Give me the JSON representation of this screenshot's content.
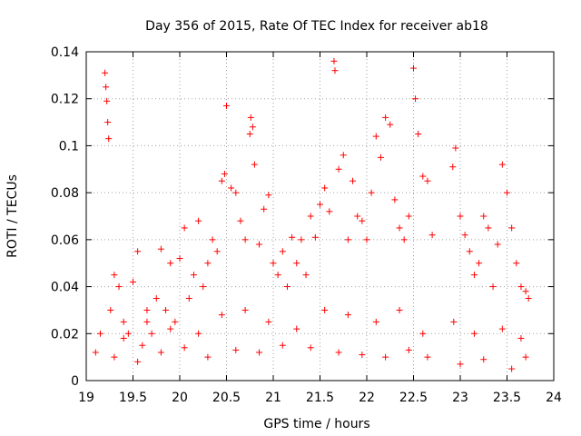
{
  "chart_data": {
    "type": "scatter",
    "title": "Day 356 of 2015, Rate Of TEC Index for receiver ab18",
    "xlabel": "GPS time / hours",
    "ylabel": "ROTI / TECUs",
    "xlim": [
      19,
      24
    ],
    "ylim": [
      0,
      0.14
    ],
    "xticks": [
      "19",
      "19.5",
      "20",
      "20.5",
      "21",
      "21.5",
      "22",
      "22.5",
      "23",
      "23.5",
      "24"
    ],
    "yticks": [
      "0",
      "0.02",
      "0.04",
      "0.06",
      "0.08",
      "0.1",
      "0.12",
      "0.14"
    ],
    "grid": true,
    "marker": "+",
    "color": "#ff0000",
    "series": [
      {
        "name": "ROTI",
        "x": [
          19.2,
          19.21,
          19.22,
          19.23,
          19.24,
          19.26,
          19.3,
          19.35,
          19.4,
          19.45,
          19.5,
          19.55,
          19.6,
          19.65,
          19.7,
          19.75,
          19.8,
          19.85,
          19.9,
          19.95,
          20.0,
          20.05,
          20.1,
          20.15,
          20.2,
          20.25,
          20.3,
          20.35,
          20.4,
          20.45,
          20.48,
          20.5,
          20.55,
          20.6,
          20.65,
          20.7,
          20.75,
          20.76,
          20.78,
          20.8,
          20.85,
          20.9,
          20.95,
          21.0,
          21.05,
          21.1,
          21.15,
          21.2,
          21.25,
          21.3,
          21.35,
          21.4,
          21.45,
          21.5,
          21.55,
          21.6,
          21.65,
          21.66,
          21.7,
          21.75,
          21.8,
          21.85,
          21.9,
          21.95,
          22.0,
          22.05,
          22.1,
          22.15,
          22.2,
          22.25,
          22.3,
          22.35,
          22.4,
          22.45,
          22.5,
          22.52,
          22.55,
          22.6,
          22.65,
          22.7,
          22.92,
          22.95,
          23.0,
          23.05,
          23.1,
          23.15,
          23.2,
          23.25,
          23.3,
          23.35,
          23.4,
          23.45,
          23.5,
          23.55,
          23.6,
          23.65,
          23.7,
          23.73,
          19.1,
          19.3,
          19.55,
          19.8,
          20.05,
          20.3,
          20.6,
          20.85,
          21.1,
          21.4,
          21.7,
          21.95,
          22.2,
          22.45,
          22.65,
          23.0,
          23.25,
          23.55,
          23.7,
          19.15,
          19.4,
          19.65,
          19.9,
          20.2,
          20.45,
          20.7,
          20.95,
          21.25,
          21.55,
          21.8,
          22.1,
          22.35,
          22.6,
          22.93,
          23.15,
          23.45,
          23.65
        ],
        "y": [
          0.131,
          0.125,
          0.119,
          0.11,
          0.103,
          0.03,
          0.045,
          0.04,
          0.025,
          0.02,
          0.042,
          0.055,
          0.015,
          0.03,
          0.02,
          0.035,
          0.056,
          0.03,
          0.05,
          0.025,
          0.052,
          0.065,
          0.035,
          0.045,
          0.068,
          0.04,
          0.05,
          0.06,
          0.055,
          0.085,
          0.088,
          0.117,
          0.082,
          0.08,
          0.068,
          0.06,
          0.105,
          0.112,
          0.108,
          0.092,
          0.058,
          0.073,
          0.079,
          0.05,
          0.045,
          0.055,
          0.04,
          0.061,
          0.05,
          0.06,
          0.045,
          0.07,
          0.061,
          0.075,
          0.082,
          0.072,
          0.136,
          0.132,
          0.09,
          0.096,
          0.06,
          0.085,
          0.07,
          0.068,
          0.06,
          0.08,
          0.104,
          0.095,
          0.112,
          0.109,
          0.077,
          0.065,
          0.06,
          0.07,
          0.133,
          0.12,
          0.105,
          0.087,
          0.085,
          0.062,
          0.091,
          0.099,
          0.07,
          0.062,
          0.055,
          0.045,
          0.05,
          0.07,
          0.065,
          0.04,
          0.058,
          0.092,
          0.08,
          0.065,
          0.05,
          0.04,
          0.038,
          0.035,
          0.012,
          0.01,
          0.008,
          0.012,
          0.014,
          0.01,
          0.013,
          0.012,
          0.015,
          0.014,
          0.012,
          0.011,
          0.01,
          0.013,
          0.01,
          0.007,
          0.009,
          0.005,
          0.01,
          0.02,
          0.018,
          0.025,
          0.022,
          0.02,
          0.028,
          0.03,
          0.025,
          0.022,
          0.03,
          0.028,
          0.025,
          0.03,
          0.02,
          0.025,
          0.02,
          0.022,
          0.018
        ]
      }
    ]
  }
}
